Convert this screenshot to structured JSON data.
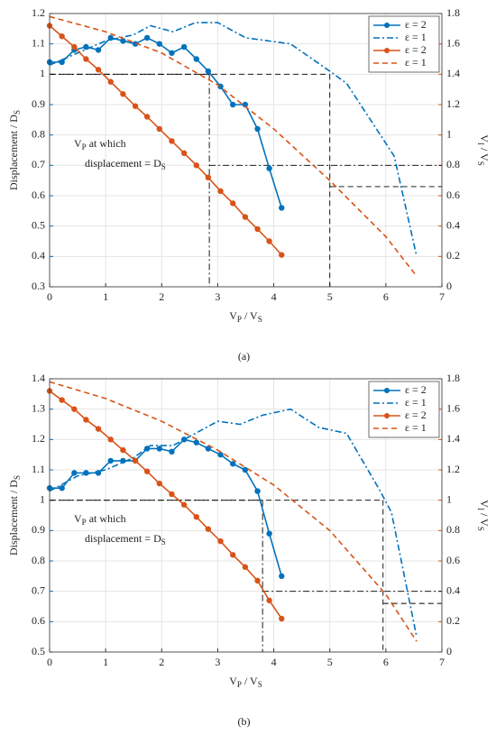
{
  "chart_data": [
    {
      "type": "line",
      "caption": "(a)",
      "xlim": [
        0,
        7
      ],
      "xticks": [
        0,
        1,
        2,
        3,
        4,
        5,
        6,
        7
      ],
      "ylim": [
        0.3,
        1.2
      ],
      "yticks": [
        0.3,
        0.4,
        0.5,
        0.6,
        0.7,
        0.8,
        0.9,
        1,
        1.1,
        1.2
      ],
      "y2lim": [
        0,
        1.8
      ],
      "y2ticks": [
        0,
        0.2,
        0.4,
        0.6,
        0.8,
        1,
        1.2,
        1.4,
        1.6,
        1.8
      ],
      "grid": true,
      "legend": "upper right",
      "xlabel": [
        {
          "text": "V"
        },
        {
          "sub": "P"
        },
        {
          "text": " / V"
        },
        {
          "sub": "S"
        }
      ],
      "ylabel": [
        {
          "text": "Displacement / D"
        },
        {
          "sub": "S"
        }
      ],
      "y2label": [
        {
          "text": "V"
        },
        {
          "sub": "I"
        },
        {
          "text": " / V"
        },
        {
          "sub": "S"
        }
      ],
      "annotation": [
        [
          {
            "text": "V"
          },
          {
            "sub": "P"
          },
          {
            "text": " at which"
          }
        ],
        [
          {
            "text": "displacement = D"
          },
          {
            "sub": "S"
          }
        ]
      ],
      "series": [
        {
          "name": "ε = 2",
          "color": "#0072bd",
          "linestyle": "solid",
          "marker": true,
          "x": [
            0,
            0.22,
            0.44,
            0.65,
            0.87,
            1.09,
            1.31,
            1.53,
            1.74,
            1.96,
            2.18,
            2.4,
            2.62,
            2.83,
            3.05,
            3.27,
            3.49,
            3.71,
            3.92,
            4.14
          ],
          "values": [
            1.04,
            1.04,
            1.08,
            1.09,
            1.08,
            1.12,
            1.11,
            1.1,
            1.12,
            1.1,
            1.07,
            1.09,
            1.05,
            1.01,
            0.96,
            0.9,
            0.9,
            0.82,
            0.69,
            0.56
          ]
        },
        {
          "name": "ε = 1",
          "color": "#0072bd",
          "linestyle": "dashdot",
          "marker": false,
          "x": [
            0,
            0.5,
            1,
            1.5,
            1.8,
            2.2,
            2.6,
            3,
            3.5,
            4.3,
            5,
            5.3,
            6.15,
            6.55
          ],
          "values": [
            1.03,
            1.07,
            1.11,
            1.13,
            1.16,
            1.14,
            1.17,
            1.17,
            1.12,
            1.1,
            1.01,
            0.97,
            0.73,
            0.4
          ]
        },
        {
          "name": "ε = 2",
          "color": "#d95319",
          "linestyle": "solid",
          "marker": true,
          "axis": "y2",
          "x": [
            0,
            0.22,
            0.44,
            0.65,
            0.87,
            1.09,
            1.31,
            1.53,
            1.74,
            1.96,
            2.18,
            2.4,
            2.62,
            2.83,
            3.05,
            3.27,
            3.49,
            3.71,
            3.92,
            4.14
          ],
          "values": [
            1.72,
            1.65,
            1.58,
            1.5,
            1.43,
            1.35,
            1.27,
            1.19,
            1.12,
            1.04,
            0.96,
            0.88,
            0.8,
            0.72,
            0.63,
            0.55,
            0.46,
            0.38,
            0.3,
            0.21
          ]
        },
        {
          "name": "ε = 1",
          "color": "#d95319",
          "linestyle": "dashed",
          "marker": false,
          "axis": "y2",
          "x": [
            0,
            1,
            2,
            3,
            4,
            5,
            6,
            6.55
          ],
          "values": [
            1.78,
            1.68,
            1.54,
            1.33,
            1.04,
            0.7,
            0.33,
            0.07
          ]
        }
      ],
      "reference_lines": [
        {
          "linestyle": "dashdot",
          "x": [
            0,
            2.85
          ],
          "y": [
            1,
            1
          ]
        },
        {
          "linestyle": "dashdot",
          "x": [
            2.85,
            2.85
          ],
          "y": [
            1,
            0.3
          ]
        },
        {
          "linestyle": "dashdot",
          "x": [
            2.85,
            7
          ],
          "y": [
            0.8,
            0.8
          ],
          "axis": "y2"
        },
        {
          "linestyle": "dashed",
          "x": [
            0,
            5
          ],
          "y": [
            1,
            1
          ]
        },
        {
          "linestyle": "dashed",
          "x": [
            5,
            5
          ],
          "y": [
            1,
            0.3
          ]
        },
        {
          "linestyle": "dashed",
          "x": [
            5,
            7
          ],
          "y": [
            0.66,
            0.66
          ],
          "axis": "y2"
        }
      ]
    },
    {
      "type": "line",
      "caption": "(b)",
      "xlim": [
        0,
        7
      ],
      "xticks": [
        0,
        1,
        2,
        3,
        4,
        5,
        6,
        7
      ],
      "ylim": [
        0.5,
        1.4
      ],
      "yticks": [
        0.5,
        0.6,
        0.7,
        0.8,
        0.9,
        1,
        1.1,
        1.2,
        1.3,
        1.4
      ],
      "y2lim": [
        0,
        1.8
      ],
      "y2ticks": [
        0,
        0.2,
        0.4,
        0.6,
        0.8,
        1,
        1.2,
        1.4,
        1.6,
        1.8
      ],
      "grid": true,
      "legend": "upper right",
      "xlabel": [
        {
          "text": "V"
        },
        {
          "sub": "P"
        },
        {
          "text": " / V"
        },
        {
          "sub": "S"
        }
      ],
      "ylabel": [
        {
          "text": "Displacement / D"
        },
        {
          "sub": "S"
        }
      ],
      "y2label": [
        {
          "text": "V"
        },
        {
          "sub": "I"
        },
        {
          "text": " / V"
        },
        {
          "sub": "S"
        }
      ],
      "annotation": [
        [
          {
            "text": "V"
          },
          {
            "sub": "P"
          },
          {
            "text": " at which"
          }
        ],
        [
          {
            "text": "displacement = D"
          },
          {
            "sub": "S"
          }
        ]
      ],
      "series": [
        {
          "name": "ε = 2",
          "color": "#0072bd",
          "linestyle": "solid",
          "marker": true,
          "x": [
            0,
            0.22,
            0.44,
            0.65,
            0.87,
            1.09,
            1.31,
            1.53,
            1.74,
            1.96,
            2.18,
            2.4,
            2.62,
            2.83,
            3.05,
            3.27,
            3.49,
            3.71,
            3.92,
            4.14
          ],
          "values": [
            1.04,
            1.04,
            1.09,
            1.09,
            1.09,
            1.13,
            1.13,
            1.13,
            1.17,
            1.17,
            1.16,
            1.2,
            1.19,
            1.17,
            1.15,
            1.12,
            1.1,
            1.03,
            0.89,
            0.75
          ]
        },
        {
          "name": "ε = 1",
          "color": "#0072bd",
          "linestyle": "dashdot",
          "marker": false,
          "x": [
            0,
            0.5,
            1,
            1.5,
            1.8,
            2.2,
            2.6,
            3,
            3.4,
            3.8,
            4.3,
            4.8,
            5.3,
            5.9,
            6.1,
            6.55
          ],
          "values": [
            1.03,
            1.08,
            1.1,
            1.14,
            1.18,
            1.18,
            1.22,
            1.26,
            1.25,
            1.28,
            1.3,
            1.24,
            1.22,
            1.03,
            0.96,
            0.55
          ]
        },
        {
          "name": "ε = 2",
          "color": "#d95319",
          "linestyle": "solid",
          "marker": true,
          "axis": "y2",
          "x": [
            0,
            0.22,
            0.44,
            0.65,
            0.87,
            1.09,
            1.31,
            1.53,
            1.74,
            1.96,
            2.18,
            2.4,
            2.62,
            2.83,
            3.05,
            3.27,
            3.49,
            3.71,
            3.92,
            4.14
          ],
          "values": [
            1.72,
            1.66,
            1.6,
            1.53,
            1.47,
            1.4,
            1.33,
            1.26,
            1.19,
            1.11,
            1.04,
            0.97,
            0.89,
            0.81,
            0.73,
            0.64,
            0.56,
            0.47,
            0.34,
            0.22
          ]
        },
        {
          "name": "ε = 1",
          "color": "#d95319",
          "linestyle": "dashed",
          "marker": false,
          "axis": "y2",
          "x": [
            0,
            1,
            2,
            3,
            4,
            5,
            6,
            6.55
          ],
          "values": [
            1.78,
            1.67,
            1.52,
            1.33,
            1.1,
            0.8,
            0.38,
            0.07
          ]
        }
      ],
      "reference_lines": [
        {
          "linestyle": "dashdot",
          "x": [
            0,
            3.8
          ],
          "y": [
            1,
            1
          ]
        },
        {
          "linestyle": "dashdot",
          "x": [
            3.8,
            3.8
          ],
          "y": [
            1,
            0.5
          ]
        },
        {
          "linestyle": "dashdot",
          "x": [
            3.8,
            7
          ],
          "y": [
            0.4,
            0.4
          ],
          "axis": "y2"
        },
        {
          "linestyle": "dashed",
          "x": [
            0,
            5.95
          ],
          "y": [
            1,
            1
          ]
        },
        {
          "linestyle": "dashed",
          "x": [
            5.95,
            5.95
          ],
          "y": [
            1,
            0.5
          ]
        },
        {
          "linestyle": "dashed",
          "x": [
            5.95,
            7
          ],
          "y": [
            0.32,
            0.32
          ],
          "axis": "y2"
        }
      ]
    }
  ]
}
